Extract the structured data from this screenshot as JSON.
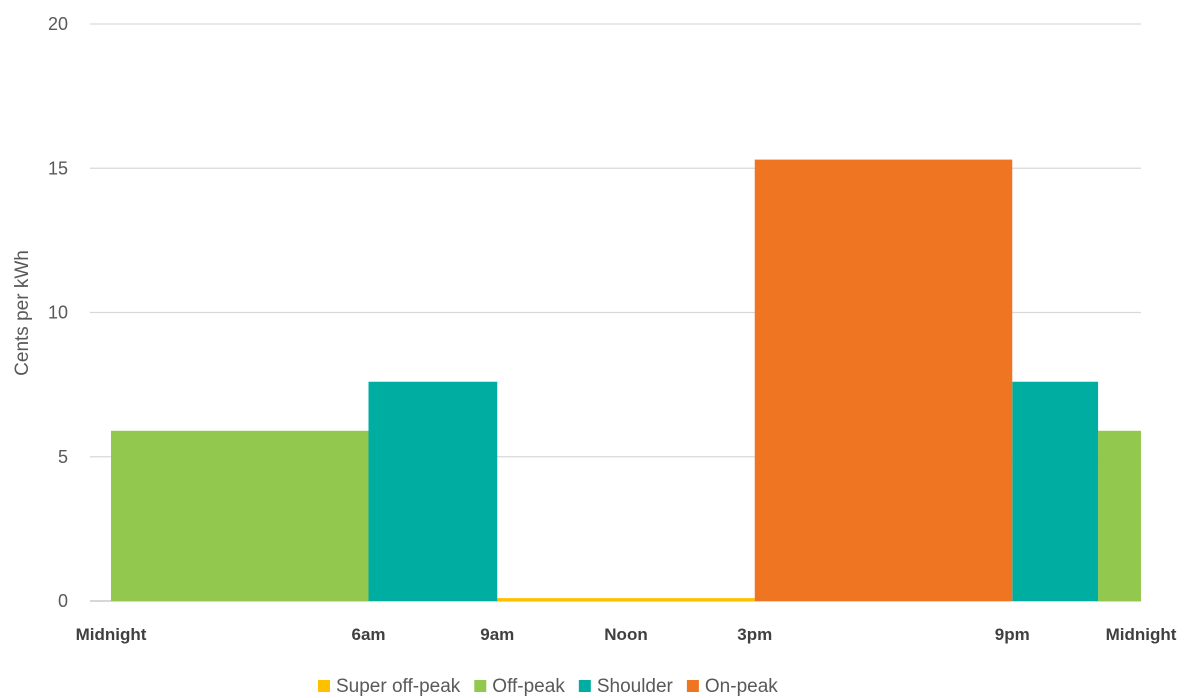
{
  "chart_data": {
    "type": "bar",
    "title": "",
    "xlabel": "",
    "ylabel": "Cents per kWh",
    "ylim": [
      0,
      20
    ],
    "y_ticks": [
      0,
      5,
      10,
      15,
      20
    ],
    "x_range_hours": [
      0,
      24
    ],
    "x_ticks": [
      {
        "hour": 0,
        "label": "Midnight"
      },
      {
        "hour": 6,
        "label": "6am"
      },
      {
        "hour": 9,
        "label": "9am"
      },
      {
        "hour": 12,
        "label": "Noon"
      },
      {
        "hour": 15,
        "label": "3pm"
      },
      {
        "hour": 21,
        "label": "9pm"
      },
      {
        "hour": 24,
        "label": "Midnight"
      }
    ],
    "grid": true,
    "legend_position": "bottom",
    "series": [
      {
        "name": "Super off-peak",
        "color": "#FFC000",
        "segments": [
          {
            "start_hour": 9,
            "end_hour": 15,
            "value": 0.1
          }
        ]
      },
      {
        "name": "Off-peak",
        "color": "#92C84D",
        "segments": [
          {
            "start_hour": 0,
            "end_hour": 6,
            "value": 5.9
          },
          {
            "start_hour": 23,
            "end_hour": 24,
            "value": 5.9
          }
        ]
      },
      {
        "name": "Shoulder",
        "color": "#00ADA1",
        "segments": [
          {
            "start_hour": 6,
            "end_hour": 9,
            "value": 7.6
          },
          {
            "start_hour": 21,
            "end_hour": 23,
            "value": 7.6
          }
        ]
      },
      {
        "name": "On-peak",
        "color": "#F07522",
        "segments": [
          {
            "start_hour": 15,
            "end_hour": 21,
            "value": 15.3
          }
        ]
      }
    ]
  }
}
